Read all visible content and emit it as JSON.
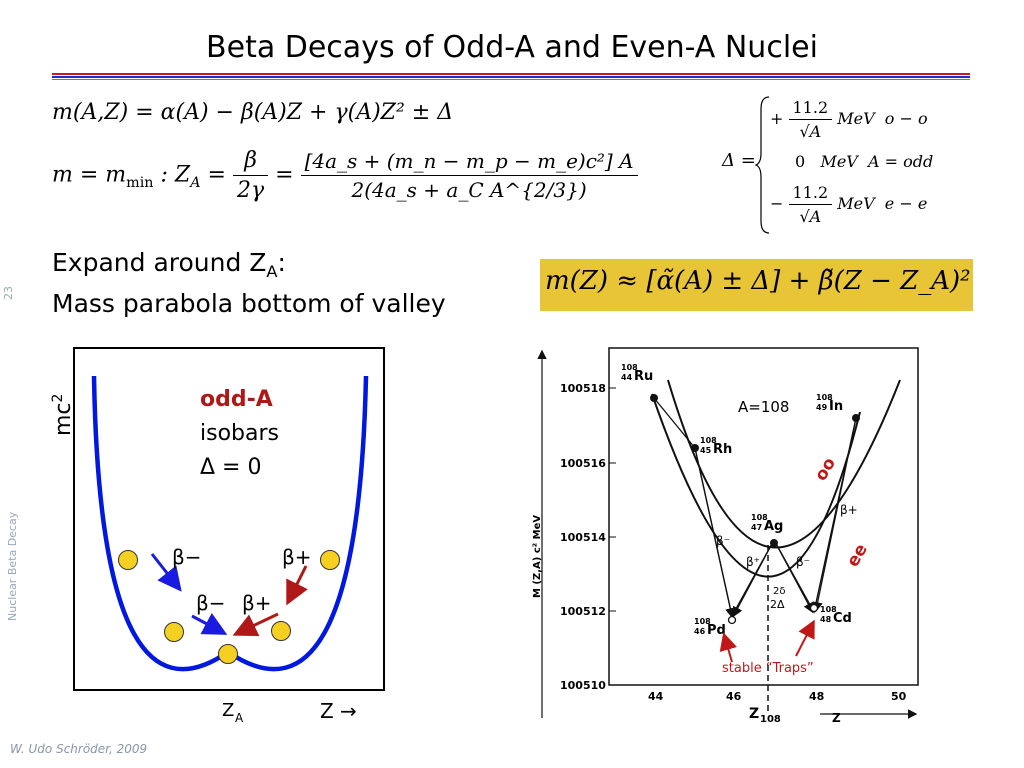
{
  "title": "Beta Decays of Odd-A and Even-A Nuclei",
  "equations": {
    "mass_formula": {
      "lhs": "m(A,Z) =",
      "terms": [
        "α(A)",
        "−",
        "β(A)Z",
        "+",
        "γ(A)Z²",
        "± Δ"
      ]
    },
    "minimum": {
      "lhs": "m = m",
      "lhs_sub": "min",
      "colon": ": Z",
      "z_sub": "A",
      "equals": "=",
      "frac1_num": "β",
      "frac1_den": "2γ",
      "equals2": "=",
      "frac2_num": "[4a_s + (m_n − m_p − m_e)c²] A",
      "frac2_den": "2(4a_s + a_C A^{2/3})"
    },
    "delta": {
      "lhs": "Δ =",
      "rows": [
        {
          "sign": "+",
          "num": "11.2",
          "den": "√A",
          "unit": "MeV",
          "case": "o − o"
        },
        {
          "sign": "",
          "num": "0",
          "den": "",
          "unit": "MeV",
          "case": "A = odd"
        },
        {
          "sign": "−",
          "num": "11.2",
          "den": "√A",
          "unit": "MeV",
          "case": "e − e"
        }
      ]
    },
    "parabola": "m(Z) ≈ [α̃(A) ± Δ] + β̃(Z − Z_A)²"
  },
  "text": {
    "expand_line1": "Expand around Z",
    "expand_sub": "A",
    "expand_colon": ":",
    "expand_line2": "Mass parabola bottom of valley"
  },
  "left_diagram": {
    "ylabel": "mc",
    "ylabel_sup": "2",
    "legend_line1": "odd-A",
    "legend_line2": "isobars",
    "legend_line3": "Δ = 0",
    "beta_minus": "β−",
    "beta_plus": "β+",
    "xlabel_za": "Z",
    "xlabel_za_sub": "A",
    "xlabel_z": "Z  →",
    "colors": {
      "curve": "#0018e0",
      "beta_minus_arrow": "#1a1ae0",
      "beta_plus_arrow": "#b01818",
      "nucleus": "#f5d020",
      "legend_title": "#b01818"
    }
  },
  "right_diagram": {
    "ylabel": "M (Z,A) c² MeV",
    "xlabel": "Z",
    "xlabel_bottom": "Z",
    "xlabel_bottom_sub": "108",
    "label_A": "A=108",
    "y_ticks": [
      "100518",
      "100516",
      "100514",
      "100512",
      "100510"
    ],
    "x_ticks": [
      "44",
      "46",
      "48",
      "50"
    ],
    "nuclides": [
      {
        "mass": "108",
        "z": "44",
        "sym": "Ru"
      },
      {
        "mass": "108",
        "z": "45",
        "sym": "Rh"
      },
      {
        "mass": "108",
        "z": "47",
        "sym": "Ag"
      },
      {
        "mass": "108",
        "z": "49",
        "sym": "In"
      },
      {
        "mass": "108",
        "z": "46",
        "sym": "Pd"
      },
      {
        "mass": "108",
        "z": "48",
        "sym": "Cd"
      }
    ],
    "curve_oo": "oo",
    "curve_ee": "ee",
    "decay_labels": {
      "bm1": "β⁻",
      "bp1": "β⁺",
      "bp2": "β+",
      "bm2": "β⁻"
    },
    "gap_labels": {
      "two_delta": "2Δ",
      "small": "2δ"
    },
    "stable_traps": "stable “Traps”"
  },
  "slide_number": "23",
  "sidebar_label": "Nuclear Beta Decay",
  "footer": "W. Udo Schröder, 2009"
}
